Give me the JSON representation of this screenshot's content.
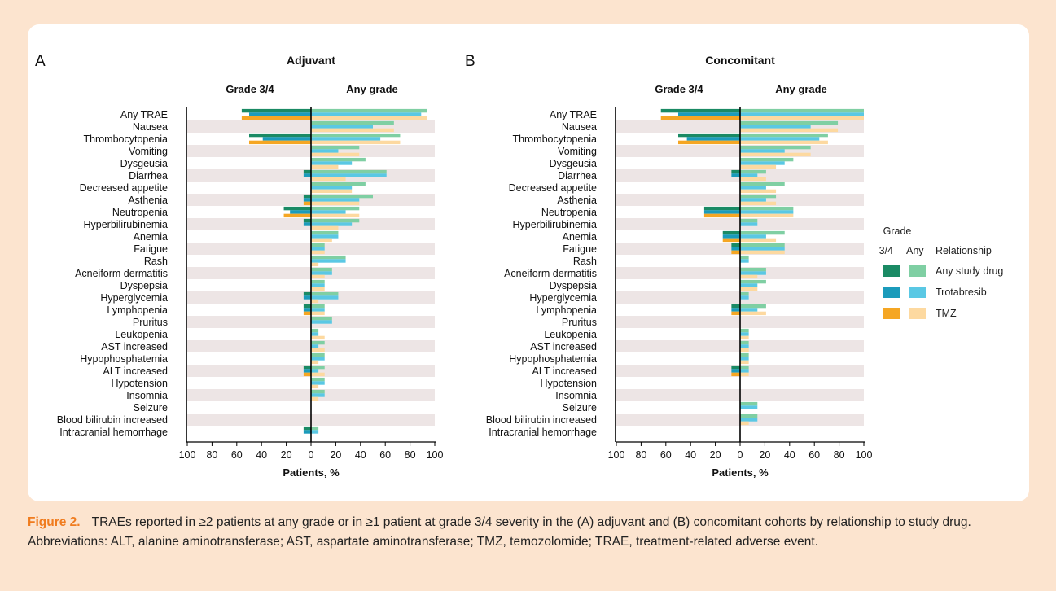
{
  "legend": {
    "title": "Grade",
    "col_34": "3/4",
    "col_any": "Any",
    "col_rel": "Relationship",
    "entries": [
      {
        "label": "Any study drug",
        "color_34": "#1a8a64",
        "color_any": "#7fcfa3"
      },
      {
        "label": "Trotabresib",
        "color_34": "#1b9bbb",
        "color_any": "#5ac8e4"
      },
      {
        "label": "TMZ",
        "color_34": "#f5a623",
        "color_any": "#fdd9a0"
      }
    ]
  },
  "colors": {
    "band": "#ede5e5",
    "axis": "#000000"
  },
  "caption": {
    "fig_label": "Figure 2.",
    "text": "TRAEs reported in ≥2 patients at any grade or in ≥1 patient at grade 3/4 severity in the (A) adjuvant and (B) concomitant cohorts by relationship to study drug. Abbreviations: ALT, alanine aminotransferase; AST, aspartate aminotransferase; TMZ, temozolomide; TRAE, treatment-related adverse event."
  },
  "chart_data": [
    {
      "type": "bar",
      "panel": "A",
      "title": "Adjuvant",
      "left_header": "Grade 3/4",
      "right_header": "Any grade",
      "xlabel": "Patients, %",
      "xticks": [
        "100",
        "80",
        "60",
        "40",
        "20",
        "0",
        "20",
        "40",
        "60",
        "80",
        "100"
      ],
      "xlim": [
        -100,
        100
      ],
      "categories": [
        "Any TRAE",
        "Nausea",
        "Thrombocytopenia",
        "Vomiting",
        "Dysgeusia",
        "Diarrhea",
        "Decreased appetite",
        "Asthenia",
        "Neutropenia",
        "Hyperbilirubinemia",
        "Anemia",
        "Fatigue",
        "Rash",
        "Acneiform dermatitis",
        "Dyspepsia",
        "Hyperglycemia",
        "Lymphopenia",
        "Pruritus",
        "Leukopenia",
        "AST increased",
        "Hypophosphatemia",
        "ALT increased",
        "Hypotension",
        "Insomnia",
        "Seizure",
        "Blood bilirubin increased",
        "Intracranial hemorrhage"
      ],
      "series": [
        {
          "name": "Any study drug",
          "grade": "3/4",
          "values": [
            56,
            0,
            50,
            0,
            0,
            6,
            0,
            6,
            22,
            6,
            0,
            0,
            0,
            0,
            0,
            6,
            6,
            0,
            0,
            0,
            0,
            6,
            0,
            0,
            0,
            0,
            6
          ]
        },
        {
          "name": "Trotabresib",
          "grade": "3/4",
          "values": [
            50,
            0,
            39,
            0,
            0,
            6,
            0,
            6,
            17,
            6,
            0,
            0,
            0,
            0,
            0,
            6,
            6,
            0,
            0,
            0,
            0,
            6,
            0,
            0,
            0,
            0,
            6
          ]
        },
        {
          "name": "TMZ",
          "grade": "3/4",
          "values": [
            56,
            0,
            50,
            0,
            0,
            0,
            0,
            6,
            22,
            0,
            0,
            0,
            0,
            0,
            0,
            0,
            6,
            0,
            0,
            0,
            0,
            6,
            0,
            0,
            0,
            0,
            0
          ]
        },
        {
          "name": "Any study drug",
          "grade": "Any",
          "values": [
            94,
            67,
            72,
            39,
            44,
            61,
            44,
            50,
            39,
            39,
            22,
            11,
            28,
            17,
            11,
            22,
            11,
            17,
            6,
            11,
            11,
            11,
            11,
            11,
            0,
            0,
            6
          ]
        },
        {
          "name": "Trotabresib",
          "grade": "Any",
          "values": [
            89,
            50,
            56,
            22,
            33,
            61,
            33,
            39,
            28,
            33,
            22,
            11,
            28,
            17,
            11,
            22,
            11,
            17,
            6,
            6,
            11,
            6,
            11,
            11,
            0,
            0,
            6
          ]
        },
        {
          "name": "TMZ",
          "grade": "Any",
          "values": [
            94,
            67,
            72,
            39,
            22,
            28,
            33,
            39,
            39,
            22,
            17,
            11,
            6,
            11,
            11,
            6,
            11,
            0,
            11,
            11,
            6,
            11,
            6,
            6,
            0,
            0,
            0
          ]
        }
      ]
    },
    {
      "type": "bar",
      "panel": "B",
      "title": "Concomitant",
      "left_header": "Grade 3/4",
      "right_header": "Any grade",
      "xlabel": "Patients, %",
      "xticks": [
        "100",
        "80",
        "60",
        "40",
        "20",
        "0",
        "20",
        "40",
        "60",
        "80",
        "100"
      ],
      "xlim": [
        -100,
        100
      ],
      "categories": [
        "Any TRAE",
        "Nausea",
        "Thrombocytopenia",
        "Vomiting",
        "Dysgeusia",
        "Diarrhea",
        "Decreased appetite",
        "Asthenia",
        "Neutropenia",
        "Hyperbilirubinemia",
        "Anemia",
        "Fatigue",
        "Rash",
        "Acneiform dermatitis",
        "Dyspepsia",
        "Hyperglycemia",
        "Lymphopenia",
        "Pruritus",
        "Leukopenia",
        "AST increased",
        "Hypophosphatemia",
        "ALT increased",
        "Hypotension",
        "Insomnia",
        "Seizure",
        "Blood bilirubin increased",
        "Intracranial hemorrhage"
      ],
      "series": [
        {
          "name": "Any study drug",
          "grade": "3/4",
          "values": [
            64,
            0,
            50,
            0,
            0,
            7,
            0,
            0,
            29,
            0,
            14,
            7,
            0,
            0,
            0,
            0,
            7,
            0,
            0,
            0,
            0,
            7,
            0,
            0,
            0,
            0,
            0
          ]
        },
        {
          "name": "Trotabresib",
          "grade": "3/4",
          "values": [
            50,
            0,
            43,
            0,
            0,
            7,
            0,
            0,
            29,
            0,
            14,
            7,
            0,
            0,
            0,
            0,
            7,
            0,
            0,
            0,
            0,
            7,
            0,
            0,
            0,
            0,
            0
          ]
        },
        {
          "name": "TMZ",
          "grade": "3/4",
          "values": [
            64,
            0,
            50,
            0,
            0,
            0,
            0,
            0,
            29,
            0,
            14,
            7,
            0,
            0,
            0,
            0,
            7,
            0,
            0,
            0,
            0,
            7,
            0,
            0,
            0,
            0,
            0
          ]
        },
        {
          "name": "Any study drug",
          "grade": "Any",
          "values": [
            100,
            79,
            71,
            57,
            43,
            21,
            36,
            29,
            43,
            14,
            36,
            36,
            7,
            21,
            21,
            7,
            21,
            0,
            7,
            7,
            7,
            7,
            0,
            0,
            14,
            14,
            0
          ]
        },
        {
          "name": "Trotabresib",
          "grade": "Any",
          "values": [
            100,
            57,
            64,
            36,
            36,
            14,
            21,
            21,
            43,
            14,
            21,
            36,
            7,
            21,
            14,
            7,
            14,
            0,
            7,
            7,
            7,
            7,
            0,
            0,
            14,
            14,
            0
          ]
        },
        {
          "name": "TMZ",
          "grade": "Any",
          "values": [
            100,
            79,
            71,
            57,
            29,
            21,
            29,
            29,
            43,
            0,
            29,
            36,
            0,
            14,
            14,
            0,
            21,
            0,
            7,
            7,
            7,
            7,
            0,
            0,
            0,
            7,
            0
          ]
        }
      ]
    }
  ]
}
